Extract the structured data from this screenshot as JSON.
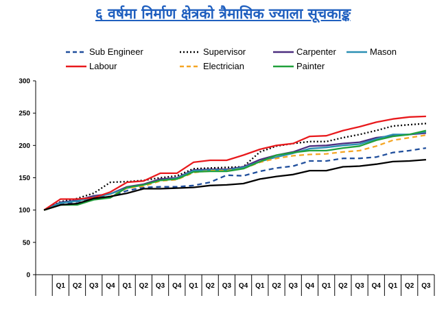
{
  "chart_data": {
    "type": "line",
    "title": "६ वर्षमा निर्माण क्षेत्रको त्रैमासिक ज्याला सूचकाङ्क",
    "xlabel": "",
    "ylabel": "",
    "ylim": [
      0,
      300
    ],
    "yticks": [
      0,
      50,
      100,
      150,
      200,
      250,
      300
    ],
    "grid": false,
    "legend": "top",
    "categories": [
      "",
      "Q1",
      "Q2",
      "Q3",
      "Q4",
      "Q1",
      "Q2",
      "Q3",
      "Q4",
      "Q1",
      "Q2",
      "Q3",
      "Q4",
      "Q1",
      "Q2",
      "Q3",
      "Q4",
      "Q1",
      "Q2",
      "Q3",
      "Q4",
      "Q1",
      "Q2",
      "Q3"
    ],
    "series": [
      {
        "name": "Sub Engineer",
        "color": "#1f4e9c",
        "dash": "dash",
        "values": [
          100,
          109,
          113,
          120,
          121,
          130,
          135,
          136,
          136,
          138,
          143,
          154,
          153,
          160,
          165,
          168,
          176,
          176,
          180,
          180,
          182,
          189,
          192,
          196
        ]
      },
      {
        "name": "Supervisor",
        "color": "#000000",
        "dash": "dot",
        "values": [
          100,
          113,
          118,
          126,
          143,
          144,
          146,
          150,
          153,
          164,
          165,
          166,
          167,
          190,
          199,
          203,
          206,
          206,
          212,
          217,
          223,
          230,
          232,
          234
        ]
      },
      {
        "name": "Carpenter",
        "color": "#4b2d7f",
        "dash": "solid",
        "values": [
          100,
          112,
          115,
          122,
          125,
          136,
          140,
          148,
          150,
          162,
          163,
          163,
          167,
          178,
          185,
          190,
          199,
          200,
          203,
          205,
          212,
          215,
          217,
          219
        ]
      },
      {
        "name": "Mason",
        "color": "#2a8fb3",
        "dash": "solid",
        "values": [
          100,
          111,
          114,
          120,
          125,
          134,
          139,
          146,
          149,
          161,
          162,
          162,
          166,
          175,
          182,
          188,
          195,
          197,
          200,
          202,
          210,
          217,
          217,
          221
        ]
      },
      {
        "name": "Labour",
        "color": "#e8191c",
        "dash": "solid",
        "values": [
          100,
          117,
          117,
          119,
          128,
          143,
          145,
          157,
          157,
          174,
          177,
          177,
          185,
          194,
          200,
          203,
          214,
          215,
          223,
          229,
          236,
          241,
          244,
          245
        ]
      },
      {
        "name": "Electrician",
        "color": "#f5a623",
        "dash": "dash",
        "values": [
          100,
          108,
          110,
          118,
          121,
          134,
          137,
          145,
          147,
          158,
          161,
          161,
          164,
          174,
          180,
          184,
          186,
          187,
          190,
          192,
          199,
          208,
          212,
          216
        ]
      },
      {
        "name": "Painter",
        "color": "#1fa03a",
        "dash": "solid",
        "values": [
          100,
          108,
          108,
          116,
          119,
          135,
          139,
          146,
          148,
          159,
          160,
          160,
          164,
          175,
          185,
          189,
          192,
          192,
          196,
          199,
          208,
          214,
          217,
          223
        ]
      },
      {
        "name": "",
        "color": "#000000",
        "dash": "solid",
        "values": [
          100,
          108,
          110,
          118,
          121,
          126,
          133,
          133,
          134,
          135,
          138,
          139,
          141,
          148,
          152,
          155,
          161,
          161,
          167,
          168,
          171,
          175,
          176,
          178
        ]
      }
    ]
  }
}
